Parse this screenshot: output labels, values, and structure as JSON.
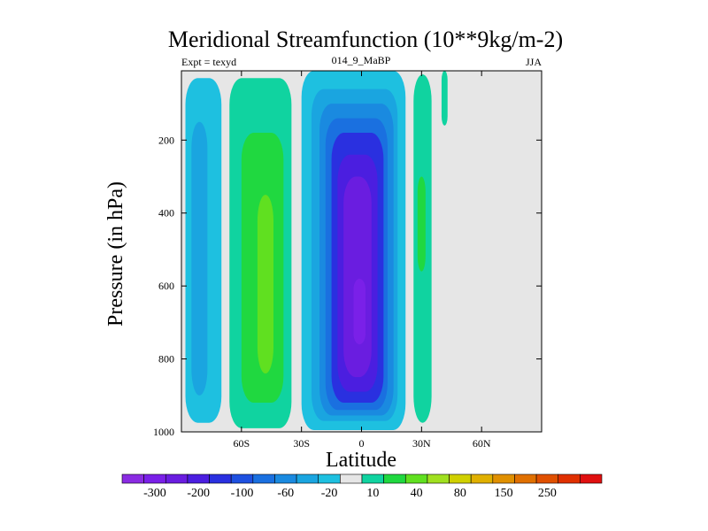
{
  "chart_data": {
    "type": "heatmap",
    "title": "Meridional Streamfunction (10**9kg/m-2)",
    "subtitle_left": "Expt = texyd",
    "subtitle_center": "014_9_MaBP",
    "subtitle_right": "JJA",
    "xlabel": "Latitude",
    "ylabel": "Pressure (in hPa)",
    "xlim": [
      -90,
      90
    ],
    "ylim": [
      1000,
      10
    ],
    "x_ticks": [
      {
        "value": -60,
        "label": "60S"
      },
      {
        "value": -30,
        "label": "30S"
      },
      {
        "value": 0,
        "label": "0"
      },
      {
        "value": 30,
        "label": "30N"
      },
      {
        "value": 60,
        "label": "60N"
      }
    ],
    "y_ticks": [
      {
        "value": 200,
        "label": "200"
      },
      {
        "value": 400,
        "label": "400"
      },
      {
        "value": 600,
        "label": "600"
      },
      {
        "value": 800,
        "label": "800"
      },
      {
        "value": 1000,
        "label": "1000"
      }
    ],
    "background_color": "#e6e6e6",
    "colorbar": {
      "colors": [
        "#8a2be2",
        "#7a20e8",
        "#6a1de0",
        "#4b1ee0",
        "#2a30e0",
        "#1e50e0",
        "#1a70e0",
        "#1a8ae0",
        "#1aa5e0",
        "#1ec0e0",
        "#e6e6e6",
        "#10d3a0",
        "#20d840",
        "#60e020",
        "#a0e020",
        "#d0d000",
        "#e0b000",
        "#e09000",
        "#e07000",
        "#e05000",
        "#e03000",
        "#e01010"
      ],
      "labels": [
        {
          "text": "-300",
          "index": 1
        },
        {
          "text": "-200",
          "index": 3
        },
        {
          "text": "-100",
          "index": 5
        },
        {
          "text": "-60",
          "index": 7
        },
        {
          "text": "-20",
          "index": 9
        },
        {
          "text": "10",
          "index": 11
        },
        {
          "text": "40",
          "index": 13
        },
        {
          "text": "80",
          "index": 15
        },
        {
          "text": "150",
          "index": 17
        },
        {
          "text": "250",
          "index": 19
        }
      ]
    },
    "regions": [
      {
        "name": "southern-polar-cell",
        "lat": [
          -88,
          -70
        ],
        "p": [
          30,
          975
        ],
        "level": -20,
        "color": "#1ec0e0"
      },
      {
        "name": "southern-polar-cell-inner",
        "lat": [
          -85,
          -77
        ],
        "p": [
          150,
          900
        ],
        "level": -60,
        "color": "#1aa5e0"
      },
      {
        "name": "southern-ferrel-cell-outer",
        "lat": [
          -66,
          -35
        ],
        "p": [
          30,
          990
        ],
        "level": 10,
        "color": "#10d3a0"
      },
      {
        "name": "southern-ferrel-cell-mid",
        "lat": [
          -60,
          -39
        ],
        "p": [
          180,
          920
        ],
        "level": 40,
        "color": "#20d840"
      },
      {
        "name": "southern-ferrel-cell-core",
        "lat": [
          -52,
          -44
        ],
        "p": [
          350,
          840
        ],
        "level": 80,
        "color": "#60e020"
      },
      {
        "name": "hadley-cell-l1",
        "lat": [
          -30,
          22
        ],
        "p": [
          10,
          995
        ],
        "level": -20,
        "color": "#1ec0e0"
      },
      {
        "name": "hadley-cell-l2",
        "lat": [
          -25,
          18
        ],
        "p": [
          60,
          970
        ],
        "level": -60,
        "color": "#1aa5e0"
      },
      {
        "name": "hadley-cell-l3",
        "lat": [
          -21,
          16
        ],
        "p": [
          100,
          955
        ],
        "level": -100,
        "color": "#1a8ae0"
      },
      {
        "name": "hadley-cell-l4",
        "lat": [
          -18,
          13
        ],
        "p": [
          140,
          940
        ],
        "level": -150,
        "color": "#1a70e0"
      },
      {
        "name": "hadley-cell-l5",
        "lat": [
          -15,
          11
        ],
        "p": [
          180,
          920
        ],
        "level": -200,
        "color": "#2a30e0"
      },
      {
        "name": "hadley-cell-l6",
        "lat": [
          -12,
          8
        ],
        "p": [
          240,
          890
        ],
        "level": -250,
        "color": "#4b1ee0"
      },
      {
        "name": "hadley-cell-l7",
        "lat": [
          -9,
          5
        ],
        "p": [
          300,
          850
        ],
        "level": -300,
        "color": "#6a1de0"
      },
      {
        "name": "hadley-cell-core",
        "lat": [
          -4,
          2
        ],
        "p": [
          580,
          760
        ],
        "level": -350,
        "color": "#7a20e8"
      },
      {
        "name": "northern-ferrel-cell",
        "lat": [
          26,
          35
        ],
        "p": [
          20,
          975
        ],
        "level": 10,
        "color": "#10d3a0"
      },
      {
        "name": "northern-ferrel-cell-core",
        "lat": [
          28,
          32
        ],
        "p": [
          300,
          560
        ],
        "level": 40,
        "color": "#20d840"
      },
      {
        "name": "northern-upper-cell",
        "lat": [
          40,
          43
        ],
        "p": [
          10,
          160
        ],
        "level": 10,
        "color": "#10d3a0"
      }
    ]
  }
}
